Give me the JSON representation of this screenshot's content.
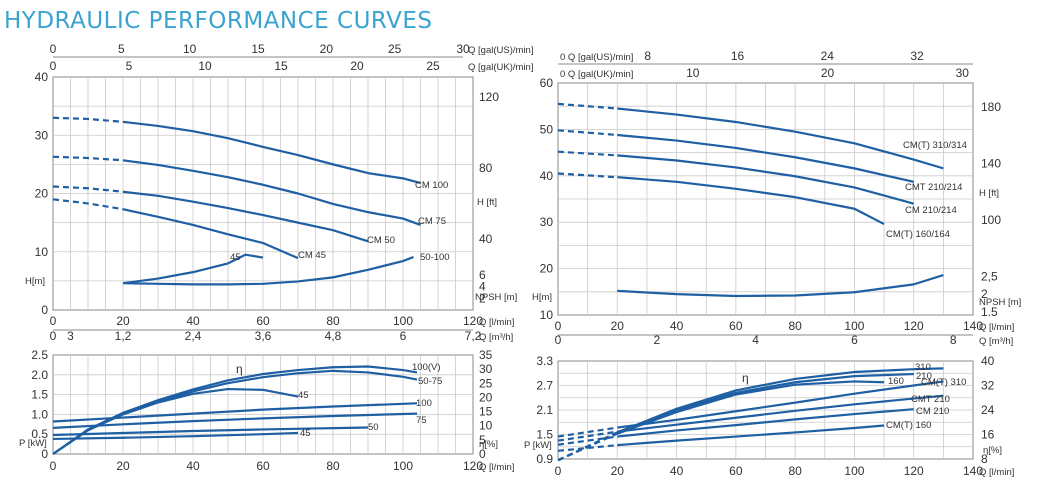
{
  "title": "HYDRAULIC PERFORMANCE CURVES",
  "colors": {
    "curve": "#1f5fa3",
    "grid": "#c9c9c9",
    "title": "#3aa3cf"
  },
  "chart_data": [
    {
      "id": "left_head",
      "type": "line",
      "xlabel": "Q [l/min]",
      "xlim": [
        0,
        120
      ],
      "ylim": [
        0,
        40
      ],
      "x_ticks": [
        "0",
        "20",
        "40",
        "60",
        "80",
        "100",
        "120"
      ],
      "y_ticks": [
        "0",
        "10",
        "20",
        "30",
        "40"
      ],
      "ylabel": "H[m]",
      "top_axes": [
        {
          "label": "Q [gal(US)/min]",
          "max": 30,
          "ticks": [
            "0",
            "5",
            "10",
            "15",
            "20",
            "25",
            "30"
          ]
        },
        {
          "label": "Q [gal(UK)/min]",
          "max": 25,
          "ticks": [
            "0",
            "5",
            "10",
            "15",
            "20",
            "25"
          ]
        }
      ],
      "bottom_axis2": {
        "label": "Q [m³/h]",
        "ticks": [
          "0",
          "1,2",
          "2,4",
          "3,6",
          "4,8",
          "6",
          "7,2"
        ],
        "extra": "3"
      },
      "right_ft": {
        "label": "H [ft]",
        "ticks": [
          "120",
          "80",
          "40"
        ]
      },
      "right_npsh": {
        "label": "NPSH [m]",
        "ticks": [
          "6",
          "4",
          "2"
        ]
      },
      "series": [
        {
          "name": "CM 100",
          "dash_until": 20,
          "x": [
            0,
            10,
            20,
            30,
            40,
            50,
            60,
            70,
            80,
            90,
            100,
            105
          ],
          "y": [
            33,
            32.8,
            32.3,
            31.6,
            30.7,
            29.5,
            28,
            26.6,
            25,
            23.5,
            22.6,
            21.8
          ]
        },
        {
          "name": "CM 75",
          "dash_until": 20,
          "x": [
            0,
            10,
            20,
            30,
            40,
            50,
            60,
            70,
            80,
            90,
            100,
            105
          ],
          "y": [
            26.3,
            26.1,
            25.7,
            24.9,
            23.9,
            22.8,
            21.5,
            20,
            18.2,
            16.8,
            15.7,
            14.6
          ]
        },
        {
          "name": "CM 50",
          "dash_until": 20,
          "x": [
            0,
            10,
            20,
            30,
            40,
            50,
            60,
            70,
            80,
            90
          ],
          "y": [
            21.2,
            20.9,
            20.3,
            19.6,
            18.6,
            17.5,
            16.3,
            15,
            13.7,
            11.8
          ]
        },
        {
          "name": "CM 45",
          "dash_until": 20,
          "x": [
            0,
            10,
            20,
            30,
            40,
            50,
            60,
            70
          ],
          "y": [
            19,
            18.3,
            17.3,
            16,
            14.6,
            13,
            11.5,
            8.9
          ]
        },
        {
          "name": "45",
          "dash_until": 0,
          "x": [
            20,
            30,
            40,
            50,
            55,
            60
          ],
          "y": [
            4.6,
            5.4,
            6.5,
            8,
            9.5,
            9
          ]
        },
        {
          "name": "50-100",
          "dash_until": 0,
          "x": [
            20,
            30,
            40,
            50,
            60,
            70,
            80,
            90,
            100,
            103
          ],
          "y": [
            4.6,
            4.5,
            4.4,
            4.4,
            4.5,
            4.9,
            5.6,
            6.9,
            8.4,
            9.1
          ]
        }
      ]
    },
    {
      "id": "left_power",
      "type": "line",
      "xlabel": "Q [l/min]",
      "xlim": [
        0,
        120
      ],
      "ylim": [
        0,
        2.5
      ],
      "x_ticks": [
        "0",
        "20",
        "40",
        "60",
        "80",
        "100",
        "120"
      ],
      "y_ticks": [
        "0",
        "0.5",
        "1.0",
        "1.5",
        "2.0",
        "2.5"
      ],
      "ylabel": "P [kW]",
      "right_eta": {
        "label": "η[%]",
        "ticks": [
          "35",
          "30",
          "25",
          "20",
          "15",
          "10",
          "5",
          "0"
        ]
      },
      "eta_label": "η",
      "series": [
        {
          "name": "100(V)",
          "x": [
            0,
            10,
            20,
            30,
            40,
            50,
            60,
            70,
            80,
            90,
            100,
            104
          ],
          "y": [
            0,
            0.62,
            1.04,
            1.36,
            1.63,
            1.86,
            2.02,
            2.12,
            2.19,
            2.21,
            2.12,
            2.06
          ]
        },
        {
          "name": "50-75",
          "x": [
            0,
            10,
            20,
            30,
            40,
            50,
            60,
            70,
            80,
            90,
            100,
            104
          ],
          "y": [
            0,
            0.6,
            1.02,
            1.32,
            1.58,
            1.79,
            1.94,
            2.04,
            2.1,
            2.06,
            1.95,
            1.88
          ]
        },
        {
          "name": "45",
          "x": [
            0,
            10,
            20,
            30,
            40,
            50,
            60,
            70
          ],
          "y": [
            0,
            0.6,
            1.0,
            1.3,
            1.52,
            1.64,
            1.62,
            1.45
          ]
        },
        {
          "name": "100",
          "x": [
            0,
            20,
            40,
            60,
            80,
            104
          ],
          "y": [
            0.82,
            0.92,
            1.02,
            1.12,
            1.2,
            1.28
          ]
        },
        {
          "name": "75",
          "x": [
            0,
            20,
            40,
            60,
            80,
            104
          ],
          "y": [
            0.66,
            0.75,
            0.83,
            0.9,
            0.96,
            1.02
          ]
        },
        {
          "name": "50",
          "x": [
            0,
            20,
            40,
            60,
            90
          ],
          "y": [
            0.48,
            0.53,
            0.58,
            0.62,
            0.67
          ]
        },
        {
          "name": "45b",
          "label": "45",
          "x": [
            0,
            20,
            40,
            60,
            70
          ],
          "y": [
            0.38,
            0.41,
            0.45,
            0.5,
            0.53
          ]
        }
      ]
    },
    {
      "id": "right_head",
      "type": "line",
      "xlabel": "Q [l/min]",
      "xlim": [
        0,
        140
      ],
      "ylim": [
        10,
        60
      ],
      "x_ticks": [
        "0",
        "20",
        "40",
        "60",
        "80",
        "100",
        "120",
        "140"
      ],
      "y_ticks": [
        "10",
        "20",
        "30",
        "40",
        "50",
        "60"
      ],
      "ylabel": "H[m]",
      "top_axes": [
        {
          "label": "Q [gal(US)/min]",
          "max": 37,
          "ticks": [
            "0",
            "8",
            "16",
            "24",
            "32"
          ]
        },
        {
          "label": "Q [gal(UK)/min]",
          "max": 30,
          "ticks": [
            "0",
            "10",
            "20",
            "30"
          ]
        }
      ],
      "bottom_axis2": {
        "label": "Q [m³/h]",
        "ticks": [
          "0",
          "2",
          "4",
          "6",
          "8"
        ],
        "max": 8.4
      },
      "right_ft": {
        "label": "H [ft]",
        "ticks": [
          "180",
          "140",
          "100"
        ]
      },
      "right_npsh": {
        "label": "NPSH [m]",
        "ticks": [
          "2,5",
          "2",
          "1.5"
        ]
      },
      "series": [
        {
          "name": "CM(T) 310/314",
          "dash_until": 20,
          "x": [
            0,
            20,
            40,
            60,
            80,
            100,
            120,
            130
          ],
          "y": [
            55.5,
            54.5,
            53.2,
            51.6,
            49.5,
            47,
            43.5,
            41.6
          ]
        },
        {
          "name": "CMT 210/214",
          "dash_until": 20,
          "x": [
            0,
            20,
            40,
            60,
            80,
            100,
            120
          ],
          "y": [
            49.8,
            48.8,
            47.6,
            46,
            44,
            41.6,
            38.7
          ]
        },
        {
          "name": "CM 210/214",
          "dash_until": 20,
          "x": [
            0,
            20,
            40,
            60,
            80,
            100,
            120
          ],
          "y": [
            45.2,
            44.4,
            43.3,
            41.8,
            39.9,
            37.5,
            34
          ]
        },
        {
          "name": "CM(T) 160/164",
          "dash_until": 20,
          "x": [
            0,
            20,
            40,
            60,
            80,
            100,
            110
          ],
          "y": [
            40.5,
            39.7,
            38.7,
            37.2,
            35.4,
            32.9,
            29.6
          ]
        },
        {
          "name": "NPSH",
          "dash_until": 0,
          "x": [
            20,
            40,
            60,
            80,
            100,
            120,
            130
          ],
          "y": [
            15.2,
            14.5,
            14.1,
            14.2,
            14.9,
            16.6,
            18.6
          ]
        }
      ]
    },
    {
      "id": "right_power",
      "type": "line",
      "xlabel": "Q [l/min]",
      "xlim": [
        0,
        140
      ],
      "ylim": [
        0.9,
        3.3
      ],
      "x_ticks": [
        "0",
        "20",
        "40",
        "60",
        "80",
        "100",
        "120",
        "140"
      ],
      "y_ticks": [
        "0.9",
        "1.5",
        "2.1",
        "2.7",
        "3.3"
      ],
      "ylabel": "P [kW]",
      "right_eta": {
        "label": "η[%]",
        "ticks": [
          "40",
          "32",
          "24",
          "16",
          "8"
        ]
      },
      "eta_label": "η",
      "series": [
        {
          "name": "310",
          "dash_until": 20,
          "x": [
            0,
            20,
            40,
            60,
            80,
            100,
            120,
            130
          ],
          "y": [
            0.87,
            1.55,
            2.13,
            2.58,
            2.86,
            3.03,
            3.1,
            3.12
          ]
        },
        {
          "name": "210",
          "dash_until": 20,
          "x": [
            0,
            20,
            40,
            60,
            80,
            100,
            120
          ],
          "y": [
            0.87,
            1.55,
            2.1,
            2.52,
            2.78,
            2.93,
            2.98
          ]
        },
        {
          "name": "160",
          "dash_until": 20,
          "x": [
            0,
            20,
            40,
            60,
            80,
            100,
            110
          ],
          "y": [
            0.87,
            1.52,
            2.05,
            2.48,
            2.72,
            2.8,
            2.78
          ]
        },
        {
          "name": "CM(T) 310",
          "dash_until": 20,
          "x": [
            0,
            20,
            40,
            60,
            80,
            100,
            130
          ],
          "y": [
            1.45,
            1.67,
            1.86,
            2.07,
            2.28,
            2.5,
            2.8
          ]
        },
        {
          "name": "CMT 210",
          "dash_until": 20,
          "x": [
            0,
            20,
            40,
            60,
            80,
            100,
            130
          ],
          "y": [
            1.35,
            1.57,
            1.74,
            1.91,
            2.08,
            2.24,
            2.45
          ]
        },
        {
          "name": "CM 210",
          "dash_until": 20,
          "x": [
            0,
            20,
            40,
            60,
            80,
            100,
            120
          ],
          "y": [
            1.25,
            1.45,
            1.6,
            1.73,
            1.87,
            2.0,
            2.12
          ]
        },
        {
          "name": "CM(T) 160",
          "dash_until": 20,
          "x": [
            0,
            20,
            40,
            60,
            80,
            100,
            110
          ],
          "y": [
            1.1,
            1.24,
            1.35,
            1.45,
            1.55,
            1.66,
            1.72
          ]
        }
      ]
    }
  ]
}
